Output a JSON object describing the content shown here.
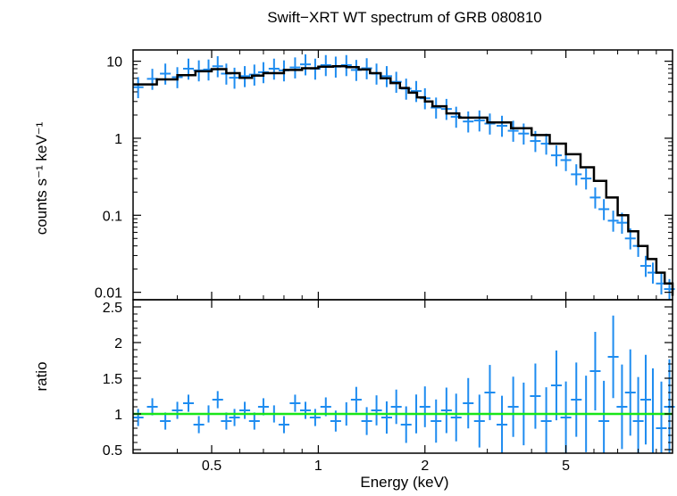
{
  "title": "Swift−XRT WT spectrum of GRB 080810",
  "colors": {
    "data": "#1e8cf0",
    "model": "#000000",
    "unity": "#19e619",
    "axes": "#000000"
  },
  "chart_data": [
    {
      "panel": "spectrum",
      "type": "scatter",
      "ylabel": "counts s⁻¹ keV⁻¹",
      "xscale": "log",
      "yscale": "log",
      "xlim": [
        0.3,
        10
      ],
      "ylim": [
        0.008,
        14
      ],
      "yticks": [
        {
          "v": 10,
          "t": "10"
        },
        {
          "v": 1,
          "t": "1"
        },
        {
          "v": 0.1,
          "t": "0.1"
        },
        {
          "v": 0.01,
          "t": "0.01"
        }
      ],
      "series": [
        {
          "role": "model (step)",
          "x": [
            0.3,
            0.35,
            0.4,
            0.45,
            0.5,
            0.55,
            0.6,
            0.65,
            0.7,
            0.8,
            0.9,
            1.0,
            1.1,
            1.2,
            1.3,
            1.4,
            1.5,
            1.6,
            1.7,
            1.8,
            1.9,
            2.0,
            2.1,
            2.3,
            2.5,
            3.0,
            3.5,
            4.0,
            4.5,
            5.0,
            5.5,
            6.0,
            6.5,
            7.0,
            7.5,
            8.0,
            8.5,
            9.0,
            9.5,
            10.0
          ],
          "y": [
            5.0,
            5.8,
            6.6,
            7.4,
            7.9,
            7.0,
            6.1,
            6.5,
            7.0,
            7.7,
            8.1,
            8.5,
            8.6,
            8.4,
            7.8,
            7.0,
            6.0,
            5.2,
            4.5,
            3.9,
            3.4,
            3.0,
            2.6,
            2.1,
            1.85,
            1.6,
            1.35,
            1.1,
            0.85,
            0.62,
            0.42,
            0.28,
            0.17,
            0.1,
            0.062,
            0.04,
            0.027,
            0.018,
            0.013,
            0.009
          ]
        },
        {
          "role": "data points",
          "x": [
            0.31,
            0.34,
            0.37,
            0.4,
            0.43,
            0.46,
            0.49,
            0.52,
            0.55,
            0.58,
            0.62,
            0.66,
            0.7,
            0.75,
            0.8,
            0.86,
            0.92,
            0.98,
            1.05,
            1.12,
            1.2,
            1.28,
            1.37,
            1.46,
            1.56,
            1.66,
            1.77,
            1.89,
            2.0,
            2.15,
            2.3,
            2.45,
            2.65,
            2.85,
            3.05,
            3.3,
            3.55,
            3.8,
            4.1,
            4.4,
            4.7,
            5.0,
            5.35,
            5.7,
            6.05,
            6.4,
            6.8,
            7.2,
            7.6,
            8.0,
            8.4,
            8.8,
            9.3,
            9.8
          ],
          "y": [
            4.6,
            5.9,
            6.9,
            6.2,
            8.0,
            7.6,
            7.8,
            8.6,
            6.9,
            6.1,
            6.4,
            6.7,
            7.2,
            8.0,
            7.6,
            8.3,
            9.1,
            8.0,
            8.9,
            8.5,
            8.9,
            7.7,
            8.1,
            6.9,
            6.4,
            5.4,
            4.4,
            4.1,
            3.3,
            2.5,
            2.4,
            1.9,
            1.65,
            1.7,
            1.55,
            1.45,
            1.25,
            1.15,
            0.92,
            0.85,
            0.6,
            0.52,
            0.34,
            0.3,
            0.17,
            0.12,
            0.085,
            0.08,
            0.05,
            0.04,
            0.022,
            0.018,
            0.013,
            0.011
          ]
        }
      ]
    },
    {
      "panel": "ratio",
      "type": "scatter",
      "xlabel": "Energy (keV)",
      "ylabel": "ratio",
      "xscale": "log",
      "xlim": [
        0.3,
        10
      ],
      "ylim": [
        0.45,
        2.6
      ],
      "xticks": [
        {
          "v": 0.5,
          "t": "0.5"
        },
        {
          "v": 1,
          "t": "1"
        },
        {
          "v": 2,
          "t": "2"
        },
        {
          "v": 5,
          "t": "5"
        }
      ],
      "yticks": [
        {
          "v": 0.5,
          "t": "0.5"
        },
        {
          "v": 1,
          "t": "1"
        },
        {
          "v": 1.5,
          "t": "1.5"
        },
        {
          "v": 2,
          "t": "2"
        },
        {
          "v": 2.5,
          "t": "2.5"
        }
      ],
      "reference_line": 1,
      "series": [
        {
          "role": "ratio points",
          "x": [
            0.31,
            0.34,
            0.37,
            0.4,
            0.43,
            0.46,
            0.49,
            0.52,
            0.55,
            0.58,
            0.62,
            0.66,
            0.7,
            0.75,
            0.8,
            0.86,
            0.92,
            0.98,
            1.05,
            1.12,
            1.2,
            1.28,
            1.37,
            1.46,
            1.56,
            1.66,
            1.77,
            1.89,
            2.0,
            2.15,
            2.3,
            2.45,
            2.65,
            2.85,
            3.05,
            3.3,
            3.55,
            3.8,
            4.1,
            4.4,
            4.7,
            5.0,
            5.35,
            5.7,
            6.05,
            6.4,
            6.8,
            7.2,
            7.6,
            8.0,
            8.4,
            8.8,
            9.3,
            9.8
          ],
          "y": [
            0.95,
            1.1,
            0.9,
            1.05,
            1.15,
            0.85,
            1.0,
            1.2,
            0.9,
            0.95,
            1.05,
            0.9,
            1.1,
            1.0,
            0.85,
            1.15,
            1.05,
            0.95,
            1.1,
            0.9,
            1.0,
            1.2,
            0.9,
            1.05,
            0.95,
            1.1,
            0.85,
            1.0,
            1.1,
            0.9,
            1.05,
            0.95,
            1.15,
            0.9,
            1.3,
            0.85,
            1.1,
            1.0,
            1.25,
            0.9,
            1.4,
            0.95,
            1.2,
            1.0,
            1.6,
            0.9,
            1.8,
            1.1,
            1.3,
            0.9,
            1.2,
            1.0,
            0.8,
            1.1
          ]
        }
      ]
    }
  ]
}
